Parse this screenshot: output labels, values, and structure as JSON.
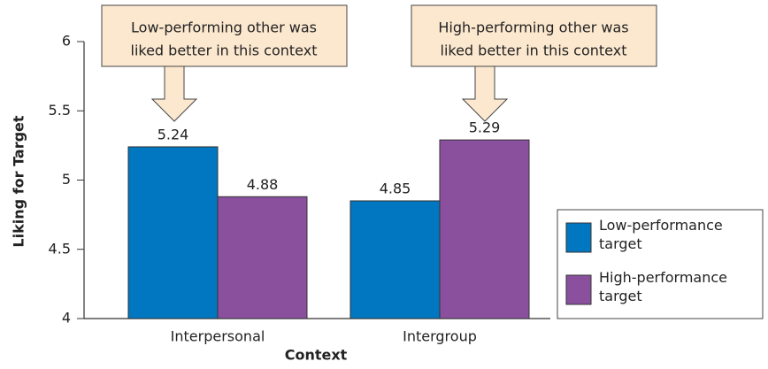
{
  "chart_data": {
    "type": "bar",
    "x_label": "Context",
    "y_label": "Liking for Target",
    "categories": [
      "Interpersonal",
      "Intergroup"
    ],
    "series": [
      {
        "name": "Low-performance target",
        "color": "#0077c0",
        "values": [
          5.24,
          4.85
        ]
      },
      {
        "name": "High-performance target",
        "color": "#8a509e",
        "values": [
          4.88,
          5.29
        ]
      }
    ],
    "ylim": [
      4,
      6
    ],
    "yticks": [
      4,
      4.5,
      5,
      5.5,
      6
    ],
    "annotations": [
      {
        "lines": [
          "Low-performing other was",
          "liked better in this context"
        ]
      },
      {
        "lines": [
          "High-performing other was",
          "liked better in this context"
        ]
      }
    ],
    "legend": "lower right"
  }
}
